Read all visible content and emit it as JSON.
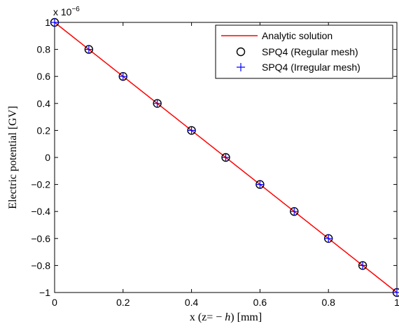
{
  "chart_data": {
    "type": "line",
    "title": "",
    "xlabel": "x (z= − h) [mm]",
    "xlabel_parts": {
      "prefix": "x (z= − ",
      "var": "h",
      "suffix": ") [mm]"
    },
    "ylabel": "Electric potential [GV]",
    "y_exponent_label": {
      "base": "x 10",
      "exp": "−6"
    },
    "xlim": [
      0,
      1
    ],
    "ylim": [
      -1,
      1
    ],
    "x_ticks": [
      0,
      0.2,
      0.4,
      0.6,
      0.8,
      1
    ],
    "x_tick_labels": [
      "0",
      "0.2",
      "0.4",
      "0.6",
      "0.8",
      "1"
    ],
    "y_ticks": [
      -1,
      -0.8,
      -0.6,
      -0.4,
      -0.2,
      0,
      0.2,
      0.4,
      0.6,
      0.8,
      1
    ],
    "y_tick_labels": [
      "−1",
      "−0.8",
      "−0.6",
      "−0.4",
      "−0.2",
      "0",
      "0.2",
      "0.4",
      "0.6",
      "0.8",
      "1"
    ],
    "grid": false,
    "legend_position": "top-right",
    "series": [
      {
        "name": "Analytic solution",
        "style": "line",
        "color": "#ff0000",
        "x": [
          0,
          1
        ],
        "y": [
          1,
          -1
        ]
      },
      {
        "name": "SPQ4 (Regular mesh)",
        "style": "circle",
        "color": "#000000",
        "x": [
          0,
          0.1,
          0.2,
          0.3,
          0.4,
          0.5,
          0.6,
          0.7,
          0.8,
          0.9,
          1
        ],
        "y": [
          1,
          0.8,
          0.6,
          0.4,
          0.2,
          0,
          -0.2,
          -0.4,
          -0.6,
          -0.8,
          -1
        ]
      },
      {
        "name": "SPQ4 (Irregular mesh)",
        "style": "plus",
        "color": "#0000ff",
        "x": [
          0,
          0.1,
          0.2,
          0.3,
          0.4,
          0.5,
          0.6,
          0.7,
          0.8,
          0.9,
          1
        ],
        "y": [
          1,
          0.8,
          0.6,
          0.4,
          0.2,
          0,
          -0.2,
          -0.4,
          -0.6,
          -0.8,
          -1
        ]
      }
    ]
  }
}
